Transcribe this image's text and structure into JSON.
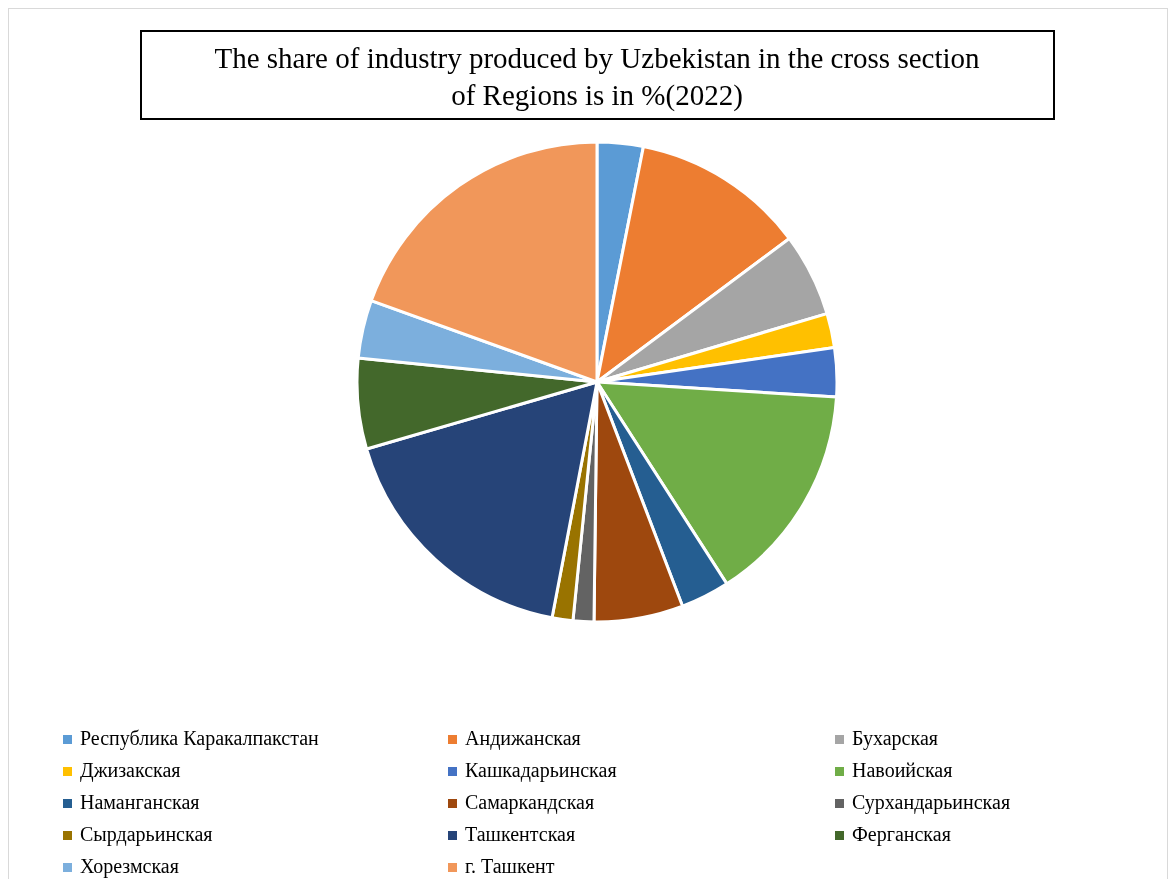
{
  "chart_data": {
    "type": "pie",
    "title": "The share of industry produced by Uzbekistan in the cross section of Regions is in %(2022)",
    "categories": [
      "Республика Каракалпакстан",
      "Андижанская",
      "Бухарская",
      "Джизакская",
      "Кашкадарьинская",
      "Навоийская",
      "Наманганская",
      "Самаркандская",
      "Сурхандарьинская",
      "Сырдарьинская",
      "Ташкентская",
      "Ферганская",
      "Хорезмская",
      "г. Ташкент"
    ],
    "values": [
      3.1,
      11.7,
      5.6,
      2.3,
      3.3,
      14.9,
      3.3,
      6.0,
      1.4,
      1.4,
      17.5,
      6.1,
      3.9,
      19.5
    ],
    "colors": [
      "#5b9bd5",
      "#ed7d31",
      "#a5a5a5",
      "#ffc000",
      "#4472c4",
      "#70ad47",
      "#255e91",
      "#9e480e",
      "#636363",
      "#997300",
      "#264478",
      "#43682b",
      "#7cafdd",
      "#f1975a"
    ],
    "legend": "bottom"
  }
}
